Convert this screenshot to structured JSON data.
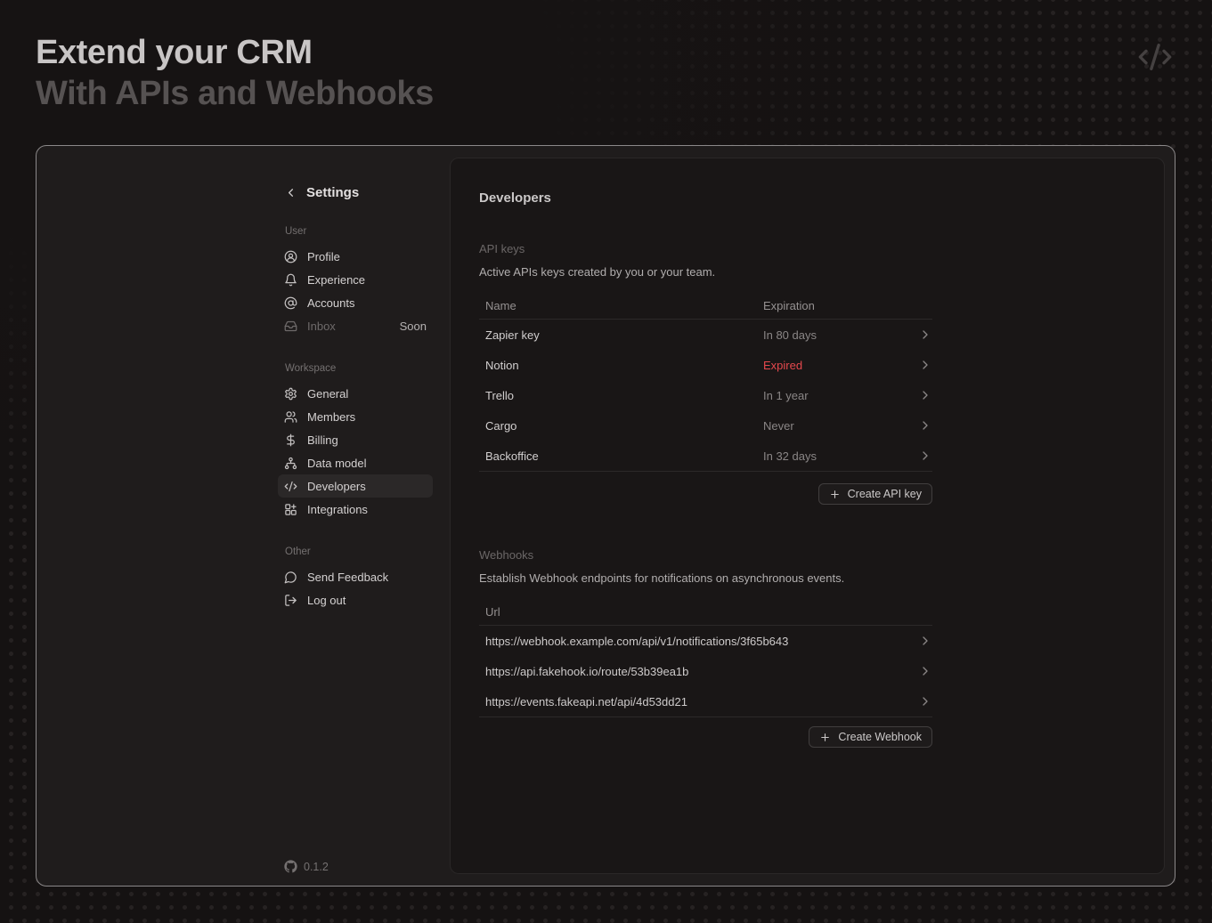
{
  "hero": {
    "title_line1": "Extend your CRM",
    "title_line2": "With APIs and Webhooks",
    "icon": "code-icon"
  },
  "sidebar": {
    "back_icon": "chevron-left-icon",
    "title": "Settings",
    "sections": [
      {
        "label": "User",
        "items": [
          {
            "label": "Profile",
            "icon": "user-circle-icon"
          },
          {
            "label": "Experience",
            "icon": "bell-icon"
          },
          {
            "label": "Accounts",
            "icon": "at-sign-icon"
          },
          {
            "label": "Inbox",
            "icon": "inbox-icon",
            "badge": "Soon",
            "disabled": true
          }
        ]
      },
      {
        "label": "Workspace",
        "items": [
          {
            "label": "General",
            "icon": "gear-icon"
          },
          {
            "label": "Members",
            "icon": "users-icon"
          },
          {
            "label": "Billing",
            "icon": "dollar-icon"
          },
          {
            "label": "Data model",
            "icon": "hierarchy-icon"
          },
          {
            "label": "Developers",
            "icon": "code-icon",
            "selected": true
          },
          {
            "label": "Integrations",
            "icon": "grid-plus-icon"
          }
        ]
      },
      {
        "label": "Other",
        "items": [
          {
            "label": "Send Feedback",
            "icon": "chat-icon"
          },
          {
            "label": "Log out",
            "icon": "logout-icon"
          }
        ]
      }
    ],
    "version": "0.1.2",
    "version_icon": "github-icon"
  },
  "main": {
    "title": "Developers",
    "api_keys": {
      "heading": "API keys",
      "description": "Active APIs keys created by you or your team.",
      "columns": [
        "Name",
        "Expiration"
      ],
      "rows": [
        {
          "name": "Zapier key",
          "expiration": "In 80 days"
        },
        {
          "name": "Notion",
          "expiration": "Expired",
          "expired": true
        },
        {
          "name": "Trello",
          "expiration": "In 1 year"
        },
        {
          "name": "Cargo",
          "expiration": "Never"
        },
        {
          "name": "Backoffice",
          "expiration": "In 32 days"
        }
      ],
      "create_button": "Create API key"
    },
    "webhooks": {
      "heading": "Webhooks",
      "description": "Establish Webhook endpoints for notifications on asynchronous events.",
      "columns": [
        "Url"
      ],
      "rows": [
        {
          "url": "https://webhook.example.com/api/v1/notifications/3f65b643"
        },
        {
          "url": "https://api.fakehook.io/route/53b39ea1b"
        },
        {
          "url": "https://events.fakeapi.net/api/4d53dd21"
        }
      ],
      "create_button": "Create Webhook"
    }
  },
  "colors": {
    "expired_red": "#e5484d",
    "panel_border": "#8b8889",
    "accent_text": "#d2cfcf"
  }
}
